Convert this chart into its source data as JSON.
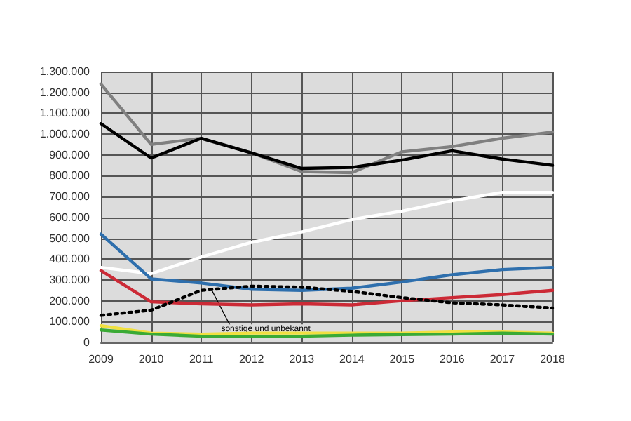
{
  "chart_data": {
    "type": "line",
    "x": [
      2009,
      2010,
      2011,
      2012,
      2013,
      2014,
      2015,
      2016,
      2017,
      2018
    ],
    "xlim": [
      2009,
      2018
    ],
    "xticks": [
      2009,
      2010,
      2011,
      2012,
      2013,
      2014,
      2015,
      2016,
      2017,
      2018
    ],
    "ylim": [
      0,
      1300000
    ],
    "yticks": [
      {
        "value": 0,
        "label": "0"
      },
      {
        "value": 100000,
        "label": "100.000"
      },
      {
        "value": 200000,
        "label": "200.000"
      },
      {
        "value": 300000,
        "label": "300.000"
      },
      {
        "value": 400000,
        "label": "400.000"
      },
      {
        "value": 500000,
        "label": "500.000"
      },
      {
        "value": 600000,
        "label": "600.000"
      },
      {
        "value": 700000,
        "label": "700.000"
      },
      {
        "value": 800000,
        "label": "800.000"
      },
      {
        "value": 900000,
        "label": "900.000"
      },
      {
        "value": 1000000,
        "label": "1.000.000"
      },
      {
        "value": 1100000,
        "label": "1.100.000"
      },
      {
        "value": 1200000,
        "label": "1.200.000"
      },
      {
        "value": 1300000,
        "label": "1.300.000"
      }
    ],
    "grid": true,
    "marker": "none",
    "series": [
      {
        "color": "#808080",
        "values": [
          1240000,
          950000,
          980000,
          910000,
          820000,
          815000,
          915000,
          940000,
          980000,
          1010000
        ]
      },
      {
        "color": "#000000",
        "values": [
          1050000,
          885000,
          980000,
          910000,
          835000,
          840000,
          875000,
          920000,
          880000,
          850000
        ]
      },
      {
        "color": "#ffffff",
        "values": [
          360000,
          330000,
          410000,
          480000,
          530000,
          590000,
          630000,
          680000,
          720000,
          720000
        ]
      },
      {
        "color": "#2e6fad",
        "values": [
          520000,
          305000,
          285000,
          255000,
          250000,
          260000,
          290000,
          325000,
          350000,
          360000
        ]
      },
      {
        "color": "#cc2a36",
        "values": [
          345000,
          195000,
          185000,
          180000,
          185000,
          180000,
          200000,
          215000,
          230000,
          250000
        ]
      },
      {
        "color": "#000000",
        "line_style": "dotted",
        "values": [
          130000,
          155000,
          250000,
          270000,
          265000,
          245000,
          215000,
          190000,
          180000,
          165000
        ]
      },
      {
        "color": "#f0e040",
        "values": [
          80000,
          45000,
          40000,
          45000,
          45000,
          45000,
          45000,
          50000,
          50000,
          45000
        ]
      },
      {
        "color": "#3aaa35",
        "values": [
          60000,
          40000,
          30000,
          30000,
          30000,
          35000,
          38000,
          40000,
          45000,
          40000
        ]
      }
    ],
    "annotations": [
      {
        "text": "sonstige und unbekannt",
        "x": 2011.2,
        "y": 255000
      }
    ]
  }
}
